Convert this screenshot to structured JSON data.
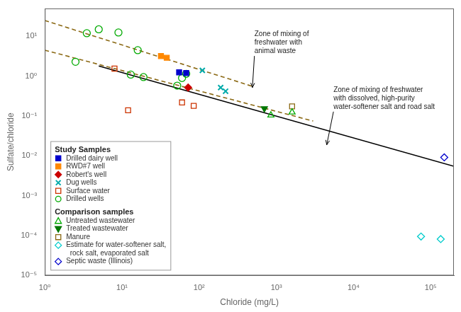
{
  "chart_data": {
    "type": "scatter",
    "xlabel": "Chloride (mg/L)",
    "ylabel": "Sulfate/chloride",
    "log": true,
    "xlim": [
      1,
      200000
    ],
    "ylim": [
      1e-05,
      50
    ],
    "xticks": [
      {
        "value": 1,
        "label": "10⁰"
      },
      {
        "value": 10,
        "label": "10¹"
      },
      {
        "value": 100,
        "label": "10²"
      },
      {
        "value": 1000,
        "label": "10³"
      },
      {
        "value": 10000,
        "label": "10⁴"
      },
      {
        "value": 100000,
        "label": "10⁵"
      }
    ],
    "yticks": [
      {
        "value": 1e-05,
        "label": "10⁻⁵"
      },
      {
        "value": 0.0001,
        "label": "10⁻⁴"
      },
      {
        "value": 0.001,
        "label": "10⁻³"
      },
      {
        "value": 0.01,
        "label": "10⁻²"
      },
      {
        "value": 0.1,
        "label": "10⁻¹"
      },
      {
        "value": 1,
        "label": "10⁰"
      },
      {
        "value": 10,
        "label": "10¹"
      }
    ],
    "grid": false,
    "legend": "lower left",
    "series": [
      {
        "type": "line",
        "line_style": "dashed",
        "color": "#8B6914",
        "x": [
          1,
          500
        ],
        "values": [
          25,
          0.55
        ]
      },
      {
        "type": "line",
        "line_style": "dashed",
        "color": "#8B6914",
        "x": [
          1,
          3000
        ],
        "values": [
          4.5,
          0.075
        ]
      },
      {
        "type": "line",
        "line_style": "solid",
        "color": "#000000",
        "x": [
          5,
          200000
        ],
        "values": [
          1.8,
          0.0055
        ]
      },
      {
        "group": "Study Samples",
        "name": "Drilled dairy well",
        "color": "#0000cc",
        "marker": "filled_square",
        "x": [
          55,
          68
        ],
        "values": [
          1.25,
          1.2
        ]
      },
      {
        "group": "Study Samples",
        "name": "RWD#7 well",
        "color": "#ff8800",
        "marker": "filled_square",
        "x": [
          32,
          38
        ],
        "values": [
          3.2,
          2.9
        ]
      },
      {
        "group": "Study Samples",
        "name": "Robert's well",
        "color": "#cc0000",
        "marker": "filled_diamond",
        "x": [
          72
        ],
        "values": [
          0.52
        ]
      },
      {
        "group": "Study Samples",
        "name": "Dug wells",
        "color": "#00aaaa",
        "marker": "x",
        "x": [
          110,
          190,
          220
        ],
        "values": [
          1.4,
          0.52,
          0.42
        ]
      },
      {
        "group": "Study Samples",
        "name": "Surface water",
        "color": "#cc3300",
        "marker": "open_square",
        "x": [
          8,
          12,
          60,
          85
        ],
        "values": [
          1.55,
          0.14,
          0.22,
          0.18
        ]
      },
      {
        "group": "Study Samples",
        "name": "Drilled wells",
        "color": "#00aa00",
        "marker": "open_circle",
        "x": [
          2.5,
          3.5,
          5,
          9,
          13,
          16,
          19,
          52,
          60,
          68
        ],
        "values": [
          2.3,
          12.0,
          15.0,
          12.5,
          1.1,
          4.5,
          0.95,
          0.58,
          0.9,
          1.15
        ]
      },
      {
        "group": "Comparison samples",
        "name": "Untreated wastewater",
        "color": "#00aa00",
        "marker": "open_triangle_up",
        "x": [
          850,
          1600
        ],
        "values": [
          0.105,
          0.125
        ]
      },
      {
        "group": "Comparison samples",
        "name": "Treated wastewater",
        "color": "#007700",
        "marker": "filled_triangle_down",
        "x": [
          700
        ],
        "values": [
          0.155
        ]
      },
      {
        "group": "Comparison samples",
        "name": "Manure",
        "color": "#8B6914",
        "marker": "open_square",
        "x": [
          1600
        ],
        "values": [
          0.175
        ]
      },
      {
        "group": "Comparison samples",
        "name": "Estimate for water-softener salt,\n  rock salt, evaporated salt",
        "color": "#00cccc",
        "marker": "open_diamond",
        "x": [
          75000,
          135000
        ],
        "values": [
          9.5e-05,
          8.2e-05
        ]
      },
      {
        "group": "Comparison samples",
        "name": "Septic waste (Illinois)",
        "color": "#0000cc",
        "marker": "open_diamond",
        "x": [
          150000
        ],
        "values": [
          0.0092
        ]
      }
    ],
    "annotations": [
      {
        "text": "Zone of mixing of\nfreshwater with\nanimal waste",
        "xy": [
          490,
          0.52
        ],
        "xytext": [
          520,
          3.5
        ]
      },
      {
        "text": "Zone of mixing of freshwater\nwith dissolved, high-purity\nwater-softener salt and road salt",
        "xy": [
          4500,
          0.019
        ],
        "xytext": [
          5500,
          0.14
        ]
      }
    ]
  }
}
